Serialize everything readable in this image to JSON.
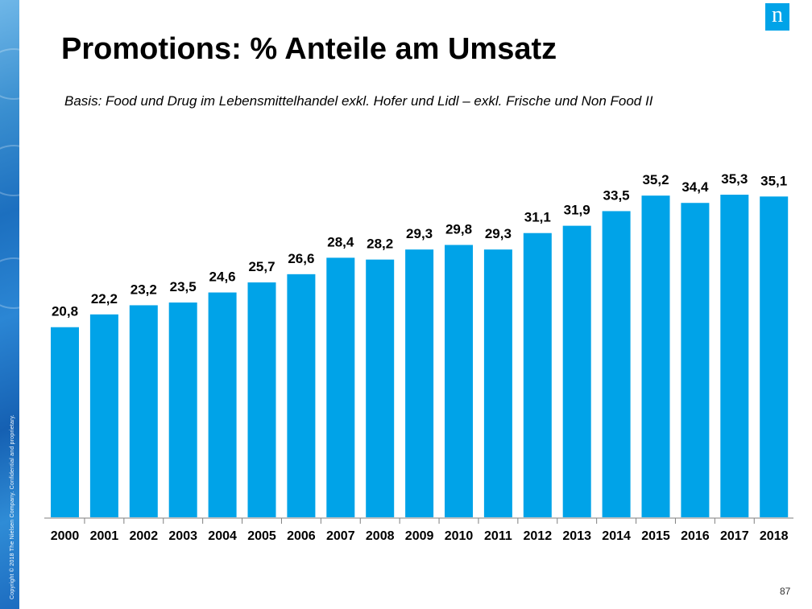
{
  "slide": {
    "title": "Promotions: % Anteile am Umsatz",
    "subtitle": "Basis: Food und Drug im Lebensmittelhandel exkl. Hofer und Lidl – exkl. Frische und Non Food II",
    "page_number": "87",
    "copyright": "Copyright © 2018 The Nielsen Company. Confidential and proprietary.",
    "logo_text": "n",
    "brand_color": "#00a3e8"
  },
  "chart_data": {
    "type": "bar",
    "categories": [
      "2000",
      "2001",
      "2002",
      "2003",
      "2004",
      "2005",
      "2006",
      "2007",
      "2008",
      "2009",
      "2010",
      "2011",
      "2012",
      "2013",
      "2014",
      "2015",
      "2016",
      "2017",
      "2018"
    ],
    "values": [
      20.8,
      22.2,
      23.2,
      23.5,
      24.6,
      25.7,
      26.6,
      28.4,
      28.2,
      29.3,
      29.8,
      29.3,
      31.1,
      31.9,
      33.5,
      35.2,
      34.4,
      35.3,
      35.1
    ],
    "data_labels": [
      "20,8",
      "22,2",
      "23,2",
      "23,5",
      "24,6",
      "25,7",
      "26,6",
      "28,4",
      "28,2",
      "29,3",
      "29,8",
      "29,3",
      "31,1",
      "31,9",
      "33,5",
      "35,2",
      "34,4",
      "35,3",
      "35,1"
    ],
    "ylim": [
      0,
      35.3
    ],
    "bar_color": "#00a3e8",
    "grid": false,
    "legend": "none"
  }
}
